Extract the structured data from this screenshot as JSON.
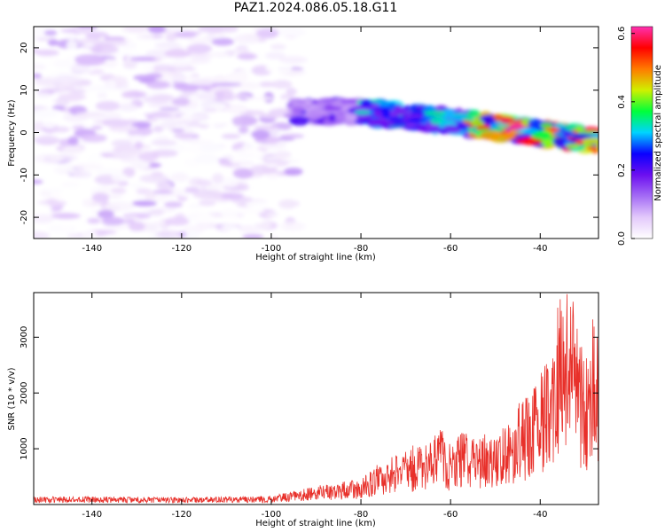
{
  "title": "PAZ1.2024.086.05.18.G11",
  "colors": {
    "snr_line": "#e8302a",
    "axes": "#000000",
    "colormap": [
      "#ffffff",
      "#e3c9fb",
      "#a46cf5",
      "#6c0ff0",
      "#0a00ff",
      "#00d4ff",
      "#00ff3a",
      "#d0f000",
      "#ff7a00",
      "#ff0000",
      "#ff30b0"
    ]
  },
  "chart_data": [
    {
      "type": "heatmap",
      "xlabel": "Height of straight line (km)",
      "ylabel": "Frequency (Hz)",
      "xlim": [
        -153,
        -27
      ],
      "ylim": [
        -25,
        25
      ],
      "xticks": [
        -140,
        -120,
        -100,
        -80,
        -60,
        -40
      ],
      "yticks": [
        -20,
        -10,
        0,
        10,
        20
      ],
      "colorbar": {
        "label": "Normalized spectral amplitude",
        "range": [
          0.0,
          0.62
        ],
        "ticks": [
          0.0,
          0.2,
          0.4,
          0.6
        ]
      },
      "features": [
        {
          "x_range": [
            -153,
            -95
          ],
          "y_range": [
            -25,
            25
          ],
          "amplitude_range": [
            0.0,
            0.1
          ],
          "pattern": "scattered noise"
        },
        {
          "x_range": [
            -95,
            -80
          ],
          "y_center": 5,
          "amplitude_range": [
            0.08,
            0.22
          ],
          "pattern": "signal onset"
        },
        {
          "x_range": [
            -80,
            -55
          ],
          "y_center": [
            5,
            2
          ],
          "amplitude_range": [
            0.15,
            0.35
          ],
          "pattern": "narrow band"
        },
        {
          "x_range": [
            -55,
            -27
          ],
          "y_center": [
            2,
            -2
          ],
          "amplitude_range": [
            0.2,
            0.62
          ],
          "pattern": "narrow band, strongest"
        }
      ]
    },
    {
      "type": "line",
      "xlabel": "Height of straight line (km)",
      "ylabel": "SNR (10 * v/v)",
      "xlim": [
        -153,
        -27
      ],
      "ylim": [
        0,
        3800
      ],
      "xticks": [
        -140,
        -120,
        -100,
        -80,
        -60,
        -40
      ],
      "yticks": [
        1000,
        2000,
        3000
      ],
      "series": [
        {
          "x": [
            -153,
            -140,
            -120,
            -100,
            -95,
            -90,
            -85,
            -80,
            -77,
            -74,
            -71,
            -68,
            -65,
            -62,
            -60,
            -57,
            -54,
            -51,
            -48,
            -45,
            -42,
            -40,
            -38,
            -36,
            -34,
            -32,
            -30,
            -28,
            -27
          ],
          "values": [
            120,
            120,
            110,
            130,
            200,
            280,
            330,
            400,
            600,
            700,
            800,
            900,
            1000,
            1200,
            900,
            1100,
            1000,
            1100,
            1200,
            1500,
            1700,
            2000,
            2500,
            3000,
            3750,
            2800,
            2200,
            3000,
            2500
          ]
        }
      ]
    }
  ]
}
